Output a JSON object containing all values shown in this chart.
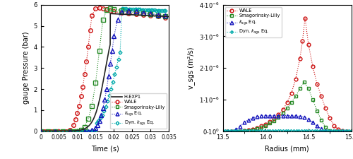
{
  "left_xlabel": "Time (s)",
  "left_ylabel": "gauge Pressure (bar)",
  "right_xlabel": "Radius (mm)",
  "right_ylabel": "v_sgs (m²/s)",
  "left_xlim": [
    0,
    0.035
  ],
  "left_ylim": [
    0,
    6
  ],
  "right_xlim": [
    13.5,
    15
  ],
  "right_ylim": [
    0,
    4e-06
  ],
  "colors": {
    "HEXP1": "#222222",
    "WALE": "#cc1111",
    "Smag": "#228822",
    "ksgs": "#1111bb",
    "Dyn": "#00aaaa"
  }
}
